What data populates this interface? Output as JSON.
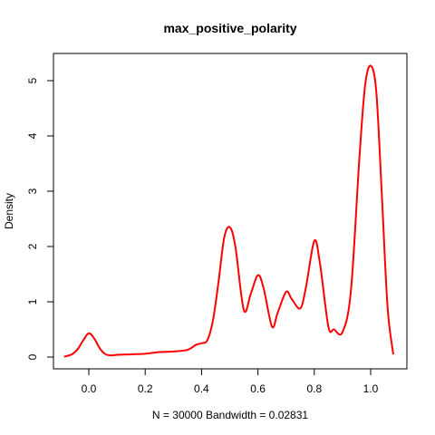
{
  "chart_data": {
    "type": "line",
    "title": "max_positive_polarity",
    "xlabel": "N = 30000   Bandwidth = 0.02831",
    "ylabel": "Density",
    "xlim": [
      -0.1,
      1.1
    ],
    "ylim": [
      0,
      5.5
    ],
    "x_ticks": [
      0.0,
      0.2,
      0.4,
      0.6,
      0.8,
      1.0
    ],
    "x_tick_labels": [
      "0.0",
      "0.2",
      "0.4",
      "0.6",
      "0.8",
      "1.0"
    ],
    "y_ticks": [
      0,
      1,
      2,
      3,
      4,
      5
    ],
    "y_tick_labels": [
      "0",
      "1",
      "2",
      "3",
      "4",
      "5"
    ],
    "grid": false,
    "series": [
      {
        "color": "#ff0000",
        "x": [
          -0.085,
          -0.06,
          -0.04,
          -0.02,
          0.0,
          0.02,
          0.04,
          0.06,
          0.08,
          0.1,
          0.15,
          0.2,
          0.25,
          0.3,
          0.35,
          0.38,
          0.4,
          0.42,
          0.44,
          0.46,
          0.48,
          0.5,
          0.52,
          0.55,
          0.575,
          0.6,
          0.62,
          0.65,
          0.67,
          0.7,
          0.72,
          0.75,
          0.77,
          0.8,
          0.82,
          0.85,
          0.87,
          0.9,
          0.93,
          0.96,
          0.98,
          1.0,
          1.02,
          1.04,
          1.06,
          1.08
        ],
        "y": [
          0.01,
          0.05,
          0.14,
          0.3,
          0.43,
          0.33,
          0.15,
          0.05,
          0.03,
          0.04,
          0.05,
          0.06,
          0.09,
          0.1,
          0.13,
          0.22,
          0.25,
          0.3,
          0.65,
          1.35,
          2.15,
          2.35,
          2.0,
          0.85,
          1.15,
          1.48,
          1.25,
          0.55,
          0.8,
          1.18,
          1.05,
          0.88,
          1.25,
          2.1,
          1.7,
          0.55,
          0.5,
          0.45,
          1.2,
          3.6,
          4.9,
          5.27,
          4.8,
          2.9,
          0.9,
          0.06
        ]
      }
    ]
  }
}
